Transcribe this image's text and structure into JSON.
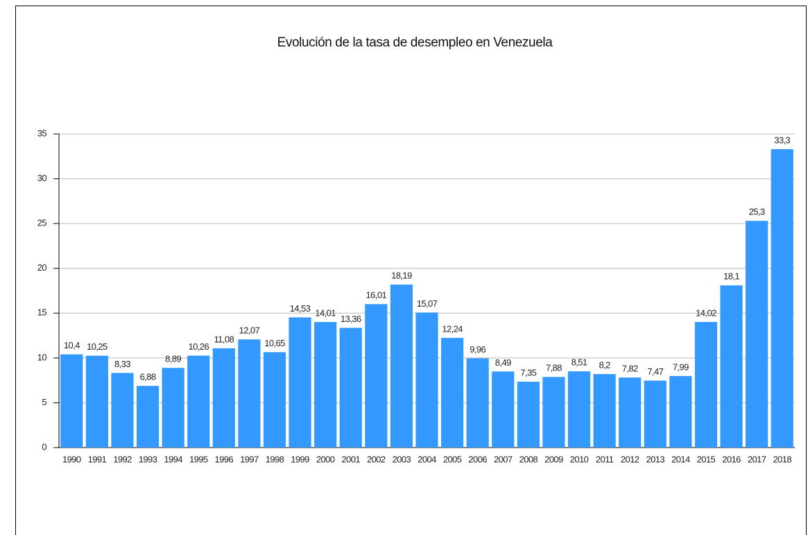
{
  "chart_data": {
    "type": "bar",
    "title": "Evolución de la tasa de desempleo en Venezuela",
    "categories": [
      "1990",
      "1991",
      "1992",
      "1993",
      "1994",
      "1995",
      "1996",
      "1997",
      "1998",
      "1999",
      "2000",
      "2001",
      "2002",
      "2003",
      "2004",
      "2005",
      "2006",
      "2007",
      "2008",
      "2009",
      "2010",
      "2011",
      "2012",
      "2013",
      "2014",
      "2015",
      "2016",
      "2017",
      "2018"
    ],
    "values": [
      10.4,
      10.25,
      8.33,
      6.88,
      8.89,
      10.26,
      11.08,
      12.07,
      10.65,
      14.53,
      14.01,
      13.36,
      16.01,
      18.19,
      15.07,
      12.24,
      9.96,
      8.49,
      7.35,
      7.88,
      8.51,
      8.2,
      7.82,
      7.47,
      7.99,
      14.02,
      18.1,
      25.3,
      33.3
    ],
    "value_labels": [
      "10,4",
      "10,25",
      "8,33",
      "6,88",
      "8,89",
      "10,26",
      "11,08",
      "12,07",
      "10,65",
      "14,53",
      "14,01",
      "13,36",
      "16,01",
      "18,19",
      "15,07",
      "12,24",
      "9,96",
      "8,49",
      "7,35",
      "7,88",
      "8,51",
      "8,2",
      "7,82",
      "7,47",
      "7,99",
      "14,02",
      "18,1",
      "25,3",
      "33,3"
    ],
    "color": "#3399ff",
    "ylim": [
      0,
      35
    ],
    "yticks": [
      0,
      5,
      10,
      15,
      20,
      25,
      30,
      35
    ],
    "grid": true
  }
}
